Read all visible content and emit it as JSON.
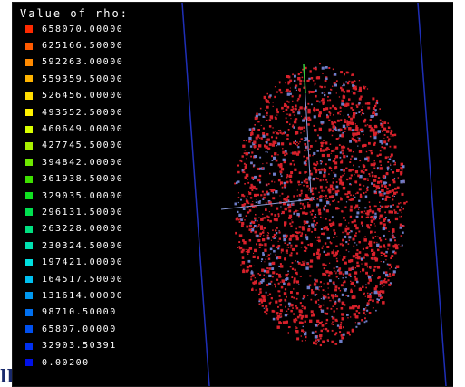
{
  "legend": {
    "title": "Value of rho:",
    "entries": [
      {
        "label": "658070.00000",
        "color": "#ff2a00"
      },
      {
        "label": "625166.50000",
        "color": "#ff5a00"
      },
      {
        "label": "592263.00000",
        "color": "#ff8a00"
      },
      {
        "label": "559359.50000",
        "color": "#ffb400"
      },
      {
        "label": "526456.00000",
        "color": "#ffdc00"
      },
      {
        "label": "493552.50000",
        "color": "#fff200"
      },
      {
        "label": "460649.00000",
        "color": "#d8ff00"
      },
      {
        "label": "427745.50000",
        "color": "#a8f000"
      },
      {
        "label": "394842.00000",
        "color": "#6ee800"
      },
      {
        "label": "361938.50000",
        "color": "#3ee000"
      },
      {
        "label": "329035.00000",
        "color": "#10e020"
      },
      {
        "label": "296131.50000",
        "color": "#00e050"
      },
      {
        "label": "263228.00000",
        "color": "#00e080"
      },
      {
        "label": "230324.50000",
        "color": "#00e0b0"
      },
      {
        "label": "197421.00000",
        "color": "#00e0e0"
      },
      {
        "label": "164517.50000",
        "color": "#00c0f0"
      },
      {
        "label": "131614.00000",
        "color": "#0098f0"
      },
      {
        "label": "98710.50000",
        "color": "#0070f0"
      },
      {
        "label": "65807.00000",
        "color": "#0050f0"
      },
      {
        "label": "32903.50391",
        "color": "#0030f0"
      },
      {
        "label": "0.00200",
        "color": "#0010e8"
      }
    ]
  },
  "scene": {
    "background": "#000000",
    "boundary_color": "#1f2fb8",
    "particle_color": "#d8212b",
    "particle_accent_color": "#6e7dc8",
    "axis_color": "#8a9ad8",
    "axis_tip_color": "#34c93b"
  }
}
